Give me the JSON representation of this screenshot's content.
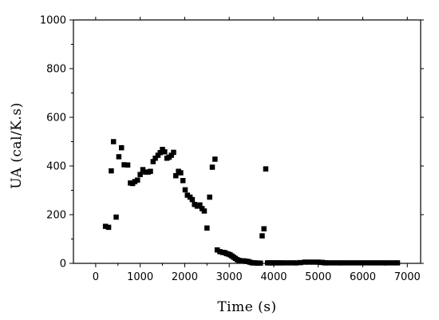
{
  "chart_data": {
    "type": "scatter",
    "xlabel": "Time (s)",
    "ylabel": "UA (cal/K.s)",
    "xlim": [
      -500,
      7300
    ],
    "ylim": [
      0,
      1000
    ],
    "x_ticks": [
      0,
      1000,
      2000,
      3000,
      4000,
      5000,
      6000,
      7000
    ],
    "y_ticks": [
      0,
      200,
      400,
      600,
      800,
      1000
    ],
    "grid": false,
    "legend": "none",
    "marker": "square",
    "color": "#000000",
    "series": [
      {
        "x": [
          220,
          290,
          350,
          400,
          460,
          520,
          580,
          640,
          720,
          780,
          830,
          880,
          940,
          1000,
          1060,
          1120,
          1180,
          1230,
          1290,
          1340,
          1400,
          1450,
          1500,
          1550,
          1600,
          1650,
          1700,
          1750,
          1800,
          1860,
          1910,
          1960,
          2010,
          2060,
          2120,
          2170,
          2220,
          2280,
          2340,
          2390,
          2440,
          2500,
          2560,
          2620,
          2680,
          2730,
          2790,
          2850,
          2900,
          2940,
          2980,
          3020,
          3060,
          3100,
          3140,
          3180,
          3220,
          3260,
          3300,
          3340,
          3380,
          3420,
          3460,
          3500,
          3540,
          3580,
          3620,
          3660,
          3700,
          3740,
          3780,
          3820,
          3860,
          3900,
          3940,
          3980,
          4040,
          4080,
          4140,
          4200,
          4300,
          4400,
          4500,
          4600,
          4700,
          4800,
          4900,
          5000,
          5040,
          5080,
          5120,
          5160,
          5200,
          5300,
          5400,
          5500,
          5600,
          5700,
          5800,
          5900,
          6000,
          6100,
          6200,
          6300,
          6400,
          6500,
          6600,
          6700,
          6780
        ],
        "y": [
          152,
          148,
          380,
          500,
          190,
          438,
          475,
          405,
          404,
          330,
          328,
          336,
          342,
          365,
          385,
          375,
          375,
          378,
          418,
          432,
          444,
          455,
          468,
          458,
          432,
          436,
          444,
          456,
          360,
          378,
          372,
          340,
          302,
          280,
          272,
          262,
          242,
          235,
          240,
          225,
          215,
          145,
          272,
          395,
          428,
          55,
          48,
          45,
          44,
          40,
          38,
          35,
          30,
          25,
          20,
          15,
          12,
          10,
          10,
          10,
          8,
          8,
          5,
          3,
          2,
          2,
          1,
          1,
          1,
          113,
          142,
          388,
          2,
          2,
          2,
          2,
          2,
          2,
          2,
          2,
          2,
          2,
          2,
          3,
          5,
          5,
          5,
          5,
          4,
          4,
          3,
          2,
          2,
          2,
          2,
          2,
          2,
          2,
          2,
          2,
          2,
          2,
          2,
          2,
          2,
          2,
          2,
          2,
          2
        ]
      }
    ]
  }
}
